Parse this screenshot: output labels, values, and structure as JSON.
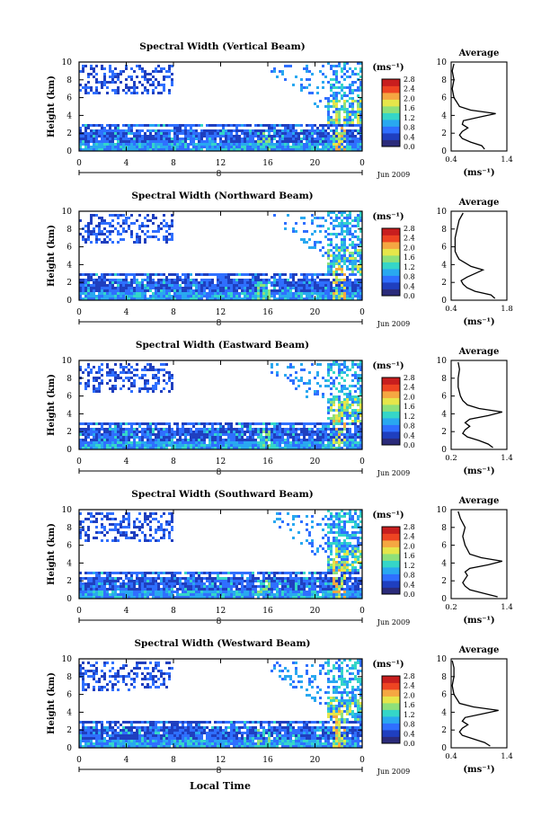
{
  "colors": {
    "colormap": [
      "#2b2b7a",
      "#1f3fbf",
      "#2f6fff",
      "#29a8f0",
      "#35d6c8",
      "#8ee07a",
      "#e6e64a",
      "#f5a742",
      "#ee4422",
      "#c81e1e"
    ],
    "axis": "#000000",
    "background": "#ffffff"
  },
  "figure": {
    "xlabel": "Local Time",
    "date_label": "Jun 2009",
    "day_label": "8"
  },
  "chart_data": [
    {
      "type": "heatmap",
      "title": "Spectral Width (Vertical Beam)",
      "ylabel": "Height (km)",
      "xlabel": "Local Time",
      "x_ticks": [
        "0",
        "4",
        "8",
        "12",
        "16",
        "20",
        "0"
      ],
      "y_ticks": [
        "0",
        "2",
        "4",
        "6",
        "8",
        "10"
      ],
      "xlim": [
        0,
        24
      ],
      "ylim": [
        0,
        10
      ],
      "colorbar": {
        "label": "(ms⁻¹)",
        "ticks": [
          "0.0",
          "0.4",
          "0.8",
          "1.2",
          "1.6",
          "2.0",
          "2.4",
          "2.8"
        ],
        "range": [
          0,
          2.8
        ]
      },
      "profile": {
        "title": "Average",
        "xlabel": "(ms⁻¹)",
        "x_ticks": [
          "0.4",
          "1.4"
        ],
        "xlim": [
          0.4,
          1.4
        ],
        "y_ticks": [
          "0",
          "2",
          "4",
          "6",
          "8",
          "10"
        ],
        "ylim": [
          0,
          10
        ],
        "heights": [
          0.2,
          0.6,
          1.0,
          1.4,
          1.8,
          2.2,
          2.6,
          3.0,
          3.4,
          3.8,
          4.2,
          4.6,
          5.0,
          5.5,
          6.0,
          7.0,
          8.0,
          9.0,
          9.8
        ],
        "values": [
          1.0,
          0.95,
          0.75,
          0.6,
          0.55,
          0.6,
          0.7,
          0.6,
          0.62,
          0.9,
          1.2,
          0.75,
          0.55,
          0.5,
          0.45,
          0.42,
          0.45,
          0.42,
          0.45
        ]
      }
    },
    {
      "type": "heatmap",
      "title": "Spectral Width (Northward Beam)",
      "ylabel": "Height (km)",
      "xlabel": "Local Time",
      "x_ticks": [
        "0",
        "4",
        "8",
        "12",
        "16",
        "20",
        "0"
      ],
      "y_ticks": [
        "0",
        "2",
        "4",
        "6",
        "8",
        "10"
      ],
      "xlim": [
        0,
        24
      ],
      "ylim": [
        0,
        10
      ],
      "colorbar": {
        "label": "(ms⁻¹)",
        "ticks": [
          "0.0",
          "0.4",
          "0.8",
          "1.2",
          "1.6",
          "2.0",
          "2.4",
          "2.8"
        ],
        "range": [
          0,
          2.8
        ]
      },
      "profile": {
        "title": "Average",
        "xlabel": "(ms⁻¹)",
        "x_ticks": [
          "0.4",
          "1.8"
        ],
        "xlim": [
          0.4,
          1.8
        ],
        "y_ticks": [
          "0",
          "2",
          "4",
          "6",
          "8",
          "10"
        ],
        "ylim": [
          0,
          10
        ],
        "heights": [
          0.2,
          0.6,
          1.0,
          1.4,
          1.8,
          2.2,
          2.6,
          3.0,
          3.4,
          3.8,
          4.2,
          4.6,
          5.0,
          5.5,
          6.0,
          7.0,
          8.0,
          9.0,
          9.8
        ],
        "values": [
          1.5,
          1.4,
          1.0,
          0.8,
          0.7,
          0.65,
          0.8,
          1.0,
          1.2,
          0.9,
          0.75,
          0.6,
          0.55,
          0.5,
          0.5,
          0.5,
          0.55,
          0.6,
          0.7
        ]
      }
    },
    {
      "type": "heatmap",
      "title": "Spectral Width (Eastward Beam)",
      "ylabel": "Height (km)",
      "xlabel": "Local Time",
      "x_ticks": [
        "0",
        "4",
        "8",
        "12",
        "16",
        "20",
        "0"
      ],
      "y_ticks": [
        "0",
        "2",
        "4",
        "6",
        "8",
        "10"
      ],
      "xlim": [
        0,
        24
      ],
      "ylim": [
        0,
        10
      ],
      "colorbar": {
        "label": "(ms⁻¹)",
        "ticks": [
          "0.0",
          "0.4",
          "0.8",
          "1.2",
          "1.6",
          "2.0",
          "2.4",
          "2.8"
        ],
        "range": [
          0,
          2.8
        ]
      },
      "profile": {
        "title": "Average",
        "xlabel": "(ms⁻¹)",
        "x_ticks": [
          "0.2",
          "1.4"
        ],
        "xlim": [
          0.2,
          1.4
        ],
        "y_ticks": [
          "0",
          "2",
          "4",
          "6",
          "8",
          "10"
        ],
        "ylim": [
          0,
          10
        ],
        "heights": [
          0.2,
          0.6,
          1.0,
          1.4,
          1.8,
          2.2,
          2.6,
          3.0,
          3.4,
          3.8,
          4.2,
          4.6,
          5.0,
          5.5,
          6.0,
          7.0,
          8.0,
          9.0,
          9.8
        ],
        "values": [
          1.1,
          1.0,
          0.8,
          0.55,
          0.45,
          0.5,
          0.6,
          0.5,
          0.6,
          1.0,
          1.3,
          0.8,
          0.55,
          0.45,
          0.4,
          0.35,
          0.35,
          0.38,
          0.35
        ]
      }
    },
    {
      "type": "heatmap",
      "title": "Spectral Width (Southward Beam)",
      "ylabel": "Height (km)",
      "xlabel": "Local Time",
      "x_ticks": [
        "0",
        "4",
        "8",
        "12",
        "16",
        "20",
        "0"
      ],
      "y_ticks": [
        "0",
        "2",
        "4",
        "6",
        "8",
        "10"
      ],
      "xlim": [
        0,
        24
      ],
      "ylim": [
        0,
        10
      ],
      "colorbar": {
        "label": "(ms⁻¹)",
        "ticks": [
          "0.0",
          "0.4",
          "0.8",
          "1.2",
          "1.6",
          "2.0",
          "2.4",
          "2.8"
        ],
        "range": [
          0,
          2.8
        ]
      },
      "profile": {
        "title": "Average",
        "xlabel": "(ms⁻¹)",
        "x_ticks": [
          "0.2",
          "1.4"
        ],
        "xlim": [
          0.2,
          1.4
        ],
        "y_ticks": [
          "0",
          "2",
          "4",
          "6",
          "8",
          "10"
        ],
        "ylim": [
          0,
          10
        ],
        "heights": [
          0.2,
          0.6,
          1.0,
          1.4,
          1.8,
          2.2,
          2.6,
          3.0,
          3.4,
          3.8,
          4.2,
          4.6,
          5.0,
          5.5,
          6.0,
          7.0,
          8.0,
          9.0,
          9.8
        ],
        "values": [
          1.2,
          0.9,
          0.6,
          0.5,
          0.45,
          0.5,
          0.55,
          0.5,
          0.6,
          1.0,
          1.3,
          0.85,
          0.6,
          0.55,
          0.5,
          0.45,
          0.5,
          0.4,
          0.35
        ]
      }
    },
    {
      "type": "heatmap",
      "title": "Spectral Width (Westward Beam)",
      "ylabel": "Height (km)",
      "xlabel": "Local Time",
      "x_ticks": [
        "0",
        "4",
        "8",
        "12",
        "16",
        "20",
        "0"
      ],
      "y_ticks": [
        "0",
        "2",
        "4",
        "6",
        "8",
        "10"
      ],
      "xlim": [
        0,
        24
      ],
      "ylim": [
        0,
        10
      ],
      "colorbar": {
        "label": "(ms⁻¹)",
        "ticks": [
          "0.0",
          "0.4",
          "0.8",
          "1.2",
          "1.6",
          "2.0",
          "2.4",
          "2.8"
        ],
        "range": [
          0,
          2.8
        ]
      },
      "profile": {
        "title": "Average",
        "xlabel": "(ms⁻¹)",
        "x_ticks": [
          "0.4",
          "1.4"
        ],
        "xlim": [
          0.4,
          1.4
        ],
        "y_ticks": [
          "0",
          "2",
          "4",
          "6",
          "8",
          "10"
        ],
        "ylim": [
          0,
          10
        ],
        "heights": [
          0.2,
          0.6,
          1.0,
          1.4,
          1.8,
          2.2,
          2.6,
          3.0,
          3.4,
          3.8,
          4.2,
          4.6,
          5.0,
          5.5,
          6.0,
          7.0,
          8.0,
          9.0,
          9.8
        ],
        "values": [
          1.1,
          1.0,
          0.8,
          0.6,
          0.55,
          0.6,
          0.7,
          0.6,
          0.65,
          0.95,
          1.25,
          0.8,
          0.55,
          0.5,
          0.45,
          0.42,
          0.45,
          0.45,
          0.42
        ]
      }
    }
  ]
}
